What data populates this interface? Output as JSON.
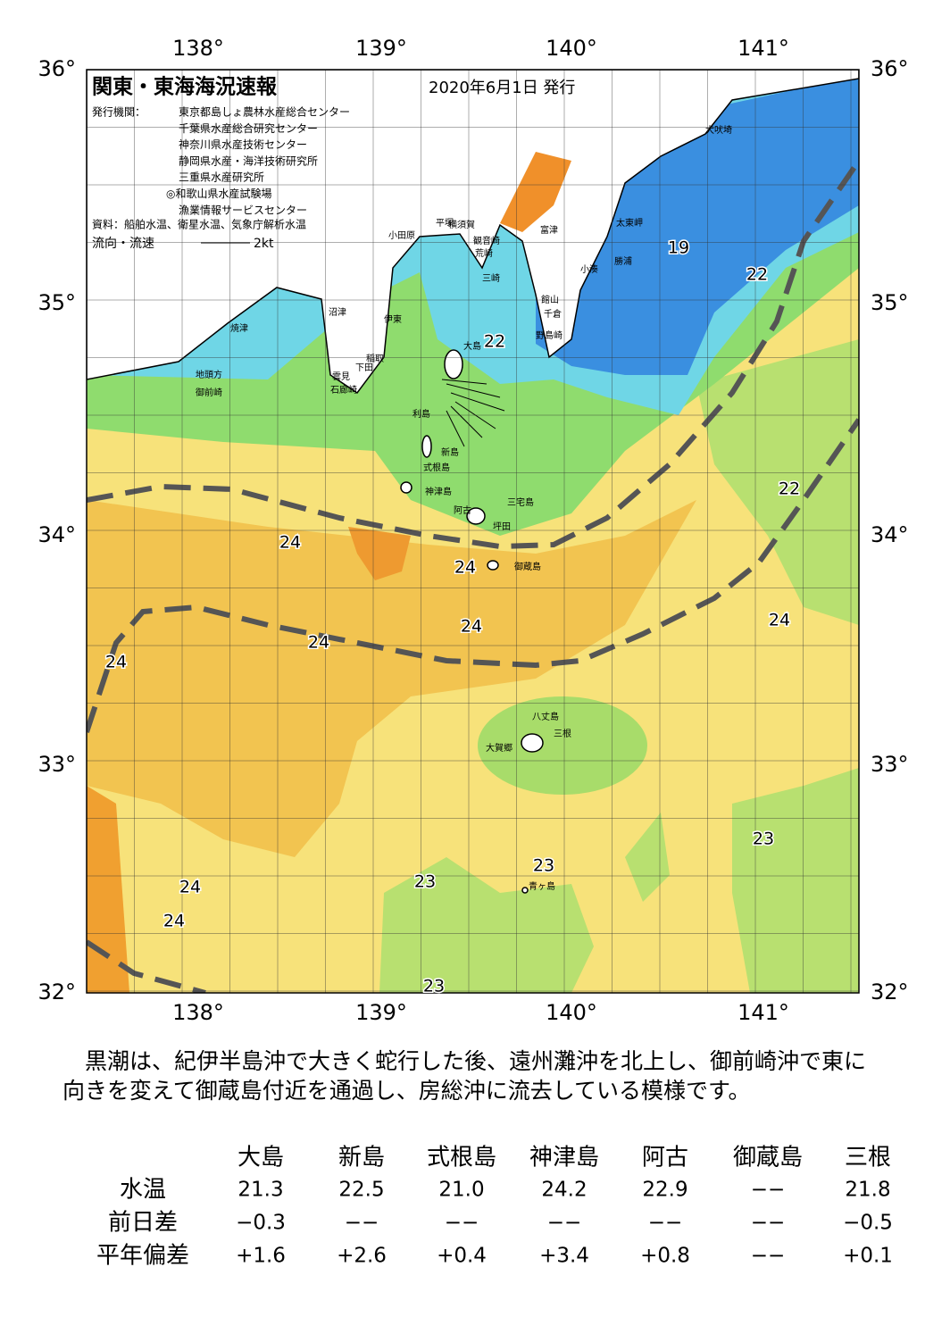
{
  "header": {
    "title": "関東・東海海況速報",
    "date": "2020年6月1日 発行",
    "issuers_label": "発行機関：",
    "issuers": [
      "東京都島しょ農林水産総合センター",
      "千葉県水産総合研究センター",
      "神奈川県水産技術センター",
      "静岡県水産・海洋技術研究所",
      "三重県水産研究所",
      "◎和歌山県水産試験場",
      "漁業情報サービスセンター"
    ],
    "source": "資料：船舶水温、衛星水温、気象庁解析水温",
    "legend_label": "流向・流速",
    "legend_speed": "2kt"
  },
  "map": {
    "lon_labels": [
      "138°",
      "139°",
      "140°",
      "141°"
    ],
    "lat_labels": [
      "36°",
      "35°",
      "34°",
      "33°",
      "32°"
    ],
    "place_names": [
      "犬吠埼",
      "太東岬",
      "勝浦",
      "小湊",
      "富津",
      "館山",
      "千倉",
      "野島崎",
      "横須賀",
      "観音崎",
      "荒崎",
      "三崎",
      "平塚",
      "小田原",
      "沼津",
      "伊東",
      "焼津",
      "稲取",
      "下田",
      "雲見",
      "石廊崎",
      "地頭方",
      "御前崎",
      "大島",
      "利島",
      "新島",
      "式根島",
      "神津島",
      "三宅島",
      "阿古",
      "坪田",
      "御蔵島",
      "八丈島",
      "三根",
      "大賀郷",
      "青ヶ島"
    ],
    "temp_labels": [
      "19",
      "22",
      "22",
      "22",
      "24",
      "24",
      "24",
      "24",
      "24",
      "24",
      "23",
      "23",
      "23",
      "24",
      "24",
      "23"
    ]
  },
  "text": [
    "　黒潮は、紀伊半島沖で大きく蛇行した後、遠州灘沖を北上し、御前崎沖で東に",
    "向きを変えて御蔵島付近を通過し、房総沖に流去している模様です。"
  ],
  "table": {
    "headers": [
      "大島",
      "新島",
      "式根島",
      "神津島",
      "阿古",
      "御蔵島",
      "三根"
    ],
    "rows": [
      {
        "label": "水温",
        "values": [
          "21.3",
          "22.5",
          "21.0",
          "24.2",
          "22.9",
          "−−",
          "21.8"
        ]
      },
      {
        "label": "前日差",
        "values": [
          "−0.3",
          "−−",
          "−−",
          "−−",
          "−−",
          "−−",
          "−0.5"
        ]
      },
      {
        "label": "平年偏差",
        "values": [
          "+1.6",
          "+2.6",
          "+0.4",
          "+3.4",
          "+0.8",
          "−−",
          "+0.1"
        ]
      }
    ]
  }
}
